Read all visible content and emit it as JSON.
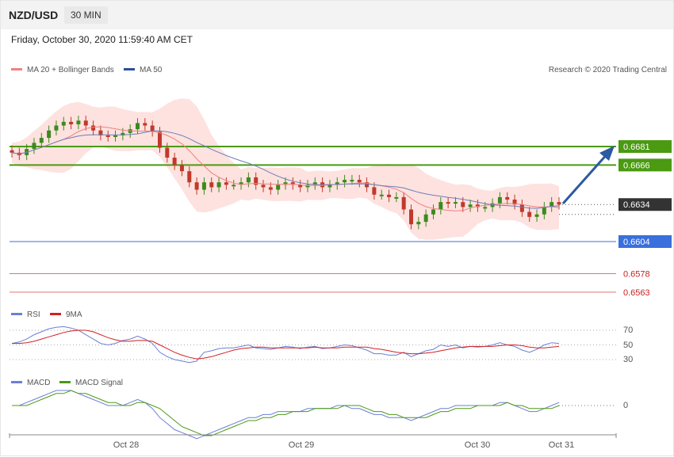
{
  "header": {
    "pair": "NZD/USD",
    "timeframe": "30 MIN",
    "timestamp": "Friday, October 30, 2020 11:59:40 AM CET"
  },
  "legend": {
    "ma20": "MA 20 + Bollinger Bands",
    "ma50": "MA 50",
    "credit": "Research © 2020 Trading Central"
  },
  "colors": {
    "support": "#3a6fdc",
    "resistance": "#4b9a12",
    "last": "#333333",
    "lower": "#e05050",
    "up": "#3c8a1e",
    "down": "#c0392b",
    "bands": "#fcd6d2",
    "ma20": "#f08080",
    "ma50": "#6c7fb8"
  },
  "chart_data": [
    {
      "type": "line",
      "title": "NZD/USD 30 MIN",
      "x_ticks": [
        "Oct 28",
        "Oct 29",
        "Oct 30",
        "Oct 31"
      ],
      "ylim": [
        0.6548,
        0.67
      ],
      "indicators": [
        "MA 20 + Bollinger Bands",
        "MA 50"
      ],
      "close": [
        0.6676,
        0.6674,
        0.6679,
        0.6684,
        0.6688,
        0.6694,
        0.6698,
        0.6701,
        0.6699,
        0.6702,
        0.6698,
        0.6694,
        0.669,
        0.6689,
        0.669,
        0.6692,
        0.6695,
        0.67,
        0.6698,
        0.6693,
        0.668,
        0.6672,
        0.6666,
        0.6661,
        0.6652,
        0.6646,
        0.6652,
        0.6648,
        0.6652,
        0.665,
        0.665,
        0.6652,
        0.6656,
        0.665,
        0.6648,
        0.6646,
        0.665,
        0.6652,
        0.665,
        0.6648,
        0.665,
        0.6652,
        0.6648,
        0.665,
        0.6652,
        0.6654,
        0.6654,
        0.6652,
        0.6648,
        0.6642,
        0.6642,
        0.664,
        0.664,
        0.663,
        0.6618,
        0.662,
        0.6626,
        0.663,
        0.6636,
        0.6635,
        0.6636,
        0.6632,
        0.6634,
        0.6632,
        0.6632,
        0.6635,
        0.664,
        0.6638,
        0.6634,
        0.6628,
        0.6624,
        0.6626,
        0.6632,
        0.6636,
        0.6634
      ],
      "levels": [
        {
          "label": "0.6681",
          "value": 0.6681,
          "kind": "resistance"
        },
        {
          "label": "0.6666",
          "value": 0.6666,
          "kind": "resistance"
        },
        {
          "label": "0.6634",
          "value": 0.6634,
          "kind": "last"
        },
        {
          "label": "0.6604",
          "value": 0.6604,
          "kind": "support"
        },
        {
          "label": "0.6578",
          "value": 0.6578,
          "kind": "lower"
        },
        {
          "label": "0.6563",
          "value": 0.6563,
          "kind": "lower"
        }
      ]
    },
    {
      "type": "line",
      "series": [
        {
          "name": "RSI"
        },
        {
          "name": "9MA"
        }
      ],
      "y_ticks": [
        "70",
        "50",
        "30"
      ],
      "ylim": [
        20,
        80
      ],
      "rsi": [
        52,
        54,
        58,
        64,
        68,
        72,
        74,
        75,
        73,
        70,
        64,
        58,
        52,
        50,
        52,
        56,
        58,
        62,
        58,
        52,
        40,
        34,
        30,
        28,
        26,
        28,
        40,
        42,
        45,
        46,
        46,
        48,
        50,
        46,
        45,
        44,
        46,
        48,
        47,
        45,
        47,
        48,
        45,
        46,
        48,
        50,
        49,
        46,
        43,
        38,
        38,
        36,
        36,
        40,
        34,
        38,
        42,
        44,
        50,
        48,
        50,
        46,
        48,
        47,
        48,
        50,
        53,
        50,
        48,
        43,
        40,
        44,
        50,
        53,
        52
      ],
      "ma9": [
        52,
        52,
        53,
        55,
        58,
        61,
        64,
        67,
        69,
        70,
        70,
        68,
        64,
        60,
        57,
        55,
        55,
        56,
        56,
        55,
        50,
        45,
        40,
        36,
        33,
        31,
        32,
        34,
        37,
        40,
        43,
        45,
        46,
        47,
        47,
        46,
        46,
        46,
        46,
        46,
        46,
        47,
        46,
        46,
        46,
        47,
        47,
        47,
        47,
        45,
        44,
        42,
        40,
        39,
        38,
        38,
        39,
        40,
        42,
        44,
        46,
        47,
        48,
        48,
        48,
        48,
        49,
        50,
        50,
        49,
        47,
        46,
        46,
        47,
        48
      ]
    },
    {
      "type": "line",
      "series": [
        {
          "name": "MACD"
        },
        {
          "name": "MACD Signal"
        }
      ],
      "y_ticks": [
        "0"
      ],
      "ylim": [
        -0.0012,
        0.0006
      ],
      "macd": [
        0.0,
        0.0,
        0.0001,
        0.0002,
        0.0003,
        0.0004,
        0.0005,
        0.0005,
        0.0005,
        0.0004,
        0.0003,
        0.0002,
        0.0001,
        0.0,
        0.0,
        0.0,
        0.0001,
        0.0002,
        0.0001,
        -0.0001,
        -0.0004,
        -0.0006,
        -0.0008,
        -0.0009,
        -0.001,
        -0.0011,
        -0.001,
        -0.0009,
        -0.0008,
        -0.0007,
        -0.0006,
        -0.0005,
        -0.0004,
        -0.0004,
        -0.0003,
        -0.0003,
        -0.0002,
        -0.0002,
        -0.0002,
        -0.0002,
        -0.0001,
        -0.0001,
        -0.0001,
        -0.0001,
        0.0,
        0.0,
        -0.0001,
        -0.0001,
        -0.0002,
        -0.0003,
        -0.0003,
        -0.0004,
        -0.0004,
        -0.0004,
        -0.0005,
        -0.0004,
        -0.0003,
        -0.0002,
        -0.0001,
        -0.0001,
        0.0,
        0.0,
        0.0,
        0.0,
        0.0,
        0.0,
        0.0001,
        0.0001,
        0.0,
        -0.0001,
        -0.0002,
        -0.0002,
        -0.0001,
        0.0,
        0.0001
      ],
      "signal": [
        0.0,
        0.0,
        0.0,
        0.0001,
        0.0002,
        0.0003,
        0.0004,
        0.0004,
        0.0005,
        0.0004,
        0.0004,
        0.0003,
        0.0002,
        0.0001,
        0.0001,
        0.0,
        0.0,
        0.0001,
        0.0001,
        0.0,
        -0.0001,
        -0.0003,
        -0.0005,
        -0.0007,
        -0.0008,
        -0.0009,
        -0.001,
        -0.001,
        -0.0009,
        -0.0008,
        -0.0007,
        -0.0006,
        -0.0005,
        -0.0005,
        -0.0004,
        -0.0004,
        -0.0003,
        -0.0003,
        -0.0002,
        -0.0002,
        -0.0002,
        -0.0001,
        -0.0001,
        -0.0001,
        -0.0001,
        0.0,
        0.0,
        0.0,
        -0.0001,
        -0.0002,
        -0.0002,
        -0.0003,
        -0.0003,
        -0.0004,
        -0.0004,
        -0.0004,
        -0.0004,
        -0.0003,
        -0.0002,
        -0.0002,
        -0.0001,
        -0.0001,
        -0.0001,
        0.0,
        0.0,
        0.0,
        0.0,
        0.0001,
        0.0,
        0.0,
        -0.0001,
        -0.0001,
        -0.0001,
        -0.0001,
        0.0
      ]
    }
  ]
}
